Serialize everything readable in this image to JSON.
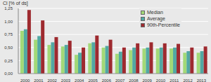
{
  "chart_data": {
    "type": "bar",
    "y_label": "Cl [% of ds]",
    "categories": [
      "2000",
      "2001",
      "2002",
      "2003",
      "2004",
      "2005",
      "2006",
      "2007",
      "2008",
      "2009",
      "2010",
      "2011",
      "2012",
      "2013"
    ],
    "series": [
      {
        "name": "Median",
        "color": "#a3d977",
        "values": [
          0.82,
          0.65,
          0.55,
          0.52,
          0.36,
          0.58,
          0.5,
          0.38,
          0.45,
          0.48,
          0.48,
          0.48,
          0.4,
          0.4
        ]
      },
      {
        "name": "Average",
        "color": "#52a8a3",
        "values": [
          0.85,
          0.72,
          0.6,
          0.55,
          0.4,
          0.6,
          0.53,
          0.42,
          0.5,
          0.5,
          0.5,
          0.5,
          0.43,
          0.43
        ]
      },
      {
        "name": "90th-Percentile",
        "color": "#9e2a2f",
        "values": [
          1.22,
          1.02,
          0.7,
          0.63,
          0.5,
          0.73,
          0.65,
          0.5,
          0.58,
          0.6,
          0.58,
          0.57,
          0.5,
          0.52
        ]
      }
    ],
    "ylim": [
      0,
      1.25
    ],
    "yticks": [
      {
        "value": 0,
        "label": "0,00"
      },
      {
        "value": 0.25,
        "label": "0,25"
      },
      {
        "value": 0.5,
        "label": "0,50"
      },
      {
        "value": 0.75,
        "label": "0,75"
      },
      {
        "value": 1,
        "label": "1,00"
      },
      {
        "value": 1.25,
        "label": "1,25"
      }
    ],
    "grid": true,
    "legend": "upper right"
  }
}
